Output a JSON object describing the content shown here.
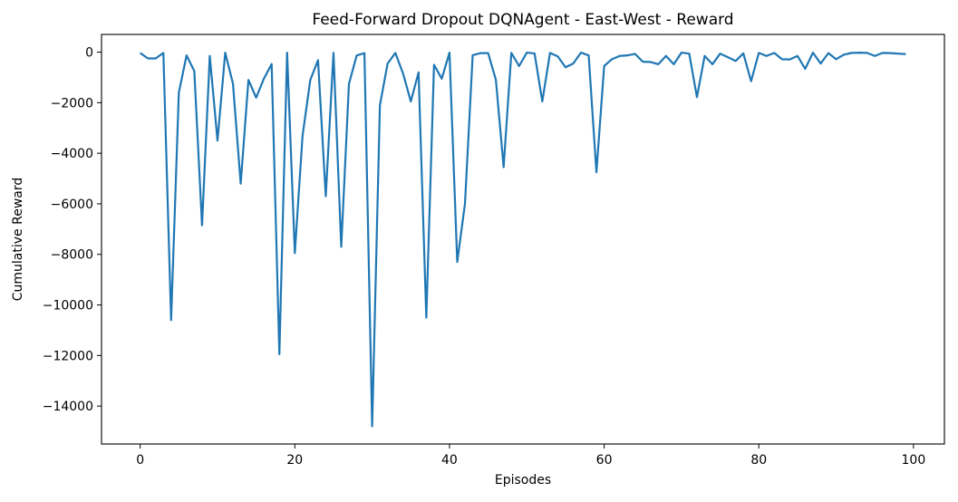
{
  "chart_data": {
    "type": "line",
    "title": "Feed-Forward Dropout DQNAgent - East-West - Reward",
    "xlabel": "Episodes",
    "ylabel": "Cumulative Reward",
    "xlim": [
      -5,
      104
    ],
    "ylim": [
      -15500,
      700
    ],
    "x_ticks": [
      0,
      20,
      40,
      60,
      80,
      100
    ],
    "y_ticks": [
      0,
      -2000,
      -4000,
      -6000,
      -8000,
      -10000,
      -12000,
      -14000
    ],
    "x_tick_labels": [
      "0",
      "20",
      "40",
      "60",
      "80",
      "100"
    ],
    "y_tick_labels": [
      "0",
      "−2000",
      "−4000",
      "−6000",
      "−8000",
      "−10000",
      "−12000",
      "−14000"
    ],
    "grid": false,
    "line_color": "#1f77b4",
    "series": [
      {
        "x": [
          0,
          1,
          2,
          3,
          4,
          5,
          6,
          7,
          8,
          9,
          10,
          11,
          12,
          13,
          14,
          15,
          16,
          17,
          18,
          19,
          20,
          21,
          22,
          23,
          24,
          25,
          26,
          27,
          28,
          29,
          30,
          31,
          32,
          33,
          34,
          35,
          36,
          37,
          38,
          39,
          40,
          41,
          42,
          43,
          44,
          45,
          46,
          47,
          48,
          49,
          50,
          51,
          52,
          53,
          54,
          55,
          56,
          57,
          58,
          59,
          60,
          61,
          62,
          63,
          64,
          65,
          66,
          67,
          68,
          69,
          70,
          71,
          72,
          73,
          74,
          75,
          76,
          77,
          78,
          79,
          80,
          81,
          82,
          83,
          84,
          85,
          86,
          87,
          88,
          89,
          90,
          91,
          92,
          93,
          94,
          95,
          96,
          97,
          98,
          99
        ],
        "values": [
          -30,
          -250,
          -250,
          -30,
          -10600,
          -1600,
          -130,
          -750,
          -6850,
          -150,
          -3500,
          -20,
          -1250,
          -5200,
          -1100,
          -1800,
          -1050,
          -470,
          -11950,
          -20,
          -7950,
          -3300,
          -1100,
          -320,
          -5700,
          -30,
          -7700,
          -1250,
          -130,
          -40,
          -14800,
          -2100,
          -450,
          -30,
          -850,
          -1950,
          -800,
          -10500,
          -500,
          -1050,
          -20,
          -8300,
          -6000,
          -120,
          -40,
          -40,
          -1100,
          -4550,
          -30,
          -550,
          -20,
          -50,
          -1950,
          -30,
          -170,
          -600,
          -450,
          -20,
          -130,
          -4750,
          -550,
          -280,
          -150,
          -130,
          -70,
          -380,
          -390,
          -480,
          -150,
          -480,
          -20,
          -60,
          -1780,
          -150,
          -480,
          -60,
          -200,
          -350,
          -50,
          -1150,
          -30,
          -150,
          -30,
          -280,
          -290,
          -150,
          -660,
          -20,
          -450,
          -40,
          -280,
          -100,
          -30,
          -20,
          -30,
          -150,
          -30,
          -40,
          -60,
          -80
        ]
      }
    ]
  }
}
